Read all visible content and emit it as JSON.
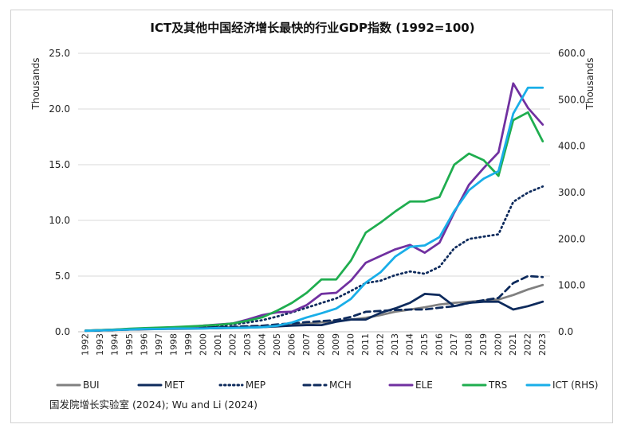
{
  "chart_data": {
    "type": "line",
    "title": "ICT及其他中国经济增长最快的行业GDP指数 (1992=100)",
    "ylabel_left": "Thousands",
    "ylabel_right": "Thousands",
    "ylim_left": [
      0,
      25
    ],
    "ylim_right": [
      0,
      600
    ],
    "yticks_left": [
      "0.0",
      "5.0",
      "10.0",
      "15.0",
      "20.0",
      "25.0"
    ],
    "yticks_right": [
      "0.0",
      "100.0",
      "200.0",
      "300.0",
      "400.0",
      "500.0",
      "600.0"
    ],
    "grid": "horizontal",
    "legend_position": "bottom",
    "x": [
      "1992",
      "1993",
      "1994",
      "1995",
      "1996",
      "1997",
      "1998",
      "1999",
      "2000",
      "2001",
      "2002",
      "2003",
      "2004",
      "2005",
      "2006",
      "2007",
      "2008",
      "2009",
      "2010",
      "2011",
      "2012",
      "2013",
      "2014",
      "2015",
      "2016",
      "2017",
      "2018",
      "2019",
      "2020",
      "2021",
      "2022",
      "2023"
    ],
    "series": [
      {
        "name": "BUI",
        "axis": "left",
        "color": "#808080",
        "dash": "solid",
        "values": [
          0.1,
          0.15,
          0.18,
          0.22,
          0.25,
          0.28,
          0.3,
          0.32,
          0.35,
          0.38,
          0.42,
          0.45,
          0.5,
          0.55,
          0.62,
          0.72,
          0.85,
          0.95,
          1.1,
          1.25,
          1.5,
          1.8,
          2.0,
          2.2,
          2.45,
          2.6,
          2.7,
          2.8,
          2.9,
          3.3,
          3.8,
          4.2
        ]
      },
      {
        "name": "MET",
        "axis": "left",
        "color": "#0d2a5c",
        "dash": "solid",
        "values": [
          0.1,
          0.13,
          0.16,
          0.19,
          0.22,
          0.25,
          0.27,
          0.28,
          0.3,
          0.32,
          0.35,
          0.38,
          0.42,
          0.48,
          0.55,
          0.6,
          0.6,
          0.9,
          1.1,
          1.1,
          1.7,
          2.1,
          2.6,
          3.4,
          3.3,
          2.3,
          2.6,
          2.7,
          2.7,
          2.0,
          2.3,
          2.7
        ]
      },
      {
        "name": "MEP",
        "axis": "right",
        "color": "#0d2a5c",
        "dash": "dotted",
        "values": [
          2,
          3,
          4,
          5,
          6,
          7,
          8,
          9,
          11,
          13,
          16,
          20,
          25,
          33,
          42,
          52,
          62,
          72,
          88,
          105,
          110,
          122,
          130,
          125,
          140,
          180,
          200,
          205,
          210,
          280,
          300,
          313
        ]
      },
      {
        "name": "MCH",
        "axis": "right",
        "color": "#0d2a5c",
        "dash": "dashed",
        "values": [
          2,
          3,
          4,
          5,
          6,
          7,
          8,
          8,
          9,
          10,
          11,
          12,
          13,
          16,
          18,
          21,
          23,
          25,
          32,
          43,
          45,
          47,
          48,
          48,
          52,
          55,
          62,
          68,
          73,
          105,
          120,
          118
        ]
      },
      {
        "name": "ELE",
        "axis": "left",
        "color": "#7030a0",
        "dash": "solid",
        "values": [
          0.1,
          0.15,
          0.2,
          0.25,
          0.3,
          0.35,
          0.4,
          0.45,
          0.55,
          0.65,
          0.75,
          1.1,
          1.5,
          1.75,
          1.8,
          2.4,
          3.4,
          3.5,
          4.6,
          6.2,
          6.8,
          7.4,
          7.8,
          7.1,
          8.0,
          10.7,
          13.2,
          14.7,
          16.1,
          22.3,
          20.1,
          18.6
        ]
      },
      {
        "name": "TRS",
        "axis": "left",
        "color": "#1fad4f",
        "dash": "solid",
        "values": [
          0.1,
          0.15,
          0.2,
          0.28,
          0.33,
          0.38,
          0.42,
          0.48,
          0.55,
          0.63,
          0.75,
          1.0,
          1.3,
          1.9,
          2.6,
          3.5,
          4.7,
          4.7,
          6.4,
          8.9,
          9.8,
          10.8,
          11.7,
          11.7,
          12.1,
          15.0,
          16.0,
          15.4,
          14.0,
          19.0,
          19.7,
          17.1
        ]
      },
      {
        "name": "ICT (RHS)",
        "axis": "right",
        "color": "#19aee8",
        "dash": "solid",
        "values": [
          2,
          3,
          4,
          5,
          6,
          6,
          7,
          7,
          7,
          8,
          8,
          9,
          10,
          13,
          20,
          31,
          40,
          50,
          71,
          106,
          128,
          162,
          183,
          186,
          204,
          260,
          305,
          330,
          346,
          470,
          526,
          526
        ]
      }
    ],
    "source": "国发院增长实验室 (2024); Wu and Li (2024)"
  }
}
